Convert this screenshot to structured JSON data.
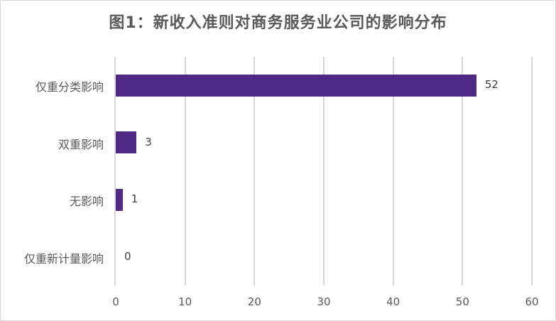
{
  "chart_data": {
    "type": "bar",
    "orientation": "horizontal",
    "title": "图1：新收入准则对商务服务业公司的影响分布",
    "categories": [
      "仅重分类影响",
      "双重影响",
      "无影响",
      "仅重新计量影响"
    ],
    "values": [
      52,
      3,
      1,
      0
    ],
    "data_labels": [
      "52",
      "3",
      "1",
      "0"
    ],
    "xlabel": "",
    "ylabel": "",
    "xlim": [
      0,
      60
    ],
    "x_ticks": [
      "0",
      "10",
      "20",
      "30",
      "40",
      "50",
      "60"
    ],
    "grid": "vertical",
    "legend": "none",
    "bar_color": "#4e2a84"
  }
}
